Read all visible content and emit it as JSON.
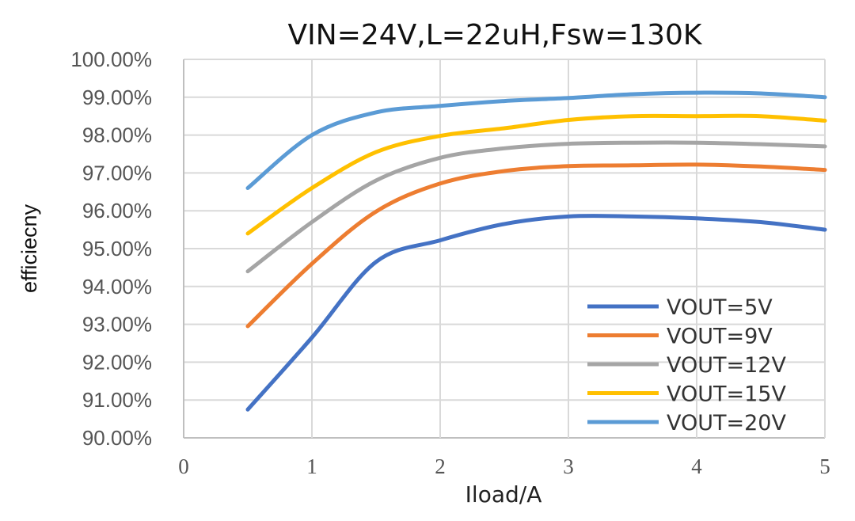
{
  "chart_data": {
    "type": "line",
    "title": "VIN=24V,L=22uH,Fsw=130K",
    "xlabel": "Iload/A",
    "ylabel": "efficiecny",
    "xlim": [
      0,
      5
    ],
    "ylim": [
      0.9,
      1.0
    ],
    "x_ticks": [
      0,
      1,
      2,
      3,
      4,
      5
    ],
    "y_ticks": [
      0.9,
      0.91,
      0.92,
      0.93,
      0.94,
      0.95,
      0.96,
      0.97,
      0.98,
      0.99,
      1.0
    ],
    "y_tick_labels": [
      "90.00%",
      "91.00%",
      "92.00%",
      "93.00%",
      "94.00%",
      "95.00%",
      "96.00%",
      "97.00%",
      "98.00%",
      "99.00%",
      "100.00%"
    ],
    "grid": true,
    "legend_position": "bottom-right",
    "x": [
      0.5,
      1.0,
      1.5,
      2.0,
      2.5,
      3.0,
      3.5,
      4.0,
      4.5,
      5.0
    ],
    "series": [
      {
        "name": "VOUT=5V",
        "color": "#4472C4",
        "values": [
          0.9075,
          0.9265,
          0.9465,
          0.9522,
          0.9565,
          0.9585,
          0.9585,
          0.958,
          0.957,
          0.955
        ]
      },
      {
        "name": "VOUT=9V",
        "color": "#ED7D31",
        "values": [
          0.9295,
          0.946,
          0.9598,
          0.9672,
          0.9705,
          0.9718,
          0.972,
          0.9722,
          0.9717,
          0.9708
        ]
      },
      {
        "name": "VOUT=12V",
        "color": "#A5A5A5",
        "values": [
          0.944,
          0.957,
          0.968,
          0.974,
          0.9765,
          0.9777,
          0.978,
          0.978,
          0.9776,
          0.977
        ]
      },
      {
        "name": "VOUT=15V",
        "color": "#FFC000",
        "values": [
          0.954,
          0.966,
          0.9755,
          0.9798,
          0.9818,
          0.984,
          0.985,
          0.985,
          0.985,
          0.9838
        ]
      },
      {
        "name": "VOUT=20V",
        "color": "#5B9BD5",
        "values": [
          0.966,
          0.98,
          0.986,
          0.9877,
          0.989,
          0.9898,
          0.9908,
          0.9912,
          0.991,
          0.99
        ]
      }
    ]
  }
}
